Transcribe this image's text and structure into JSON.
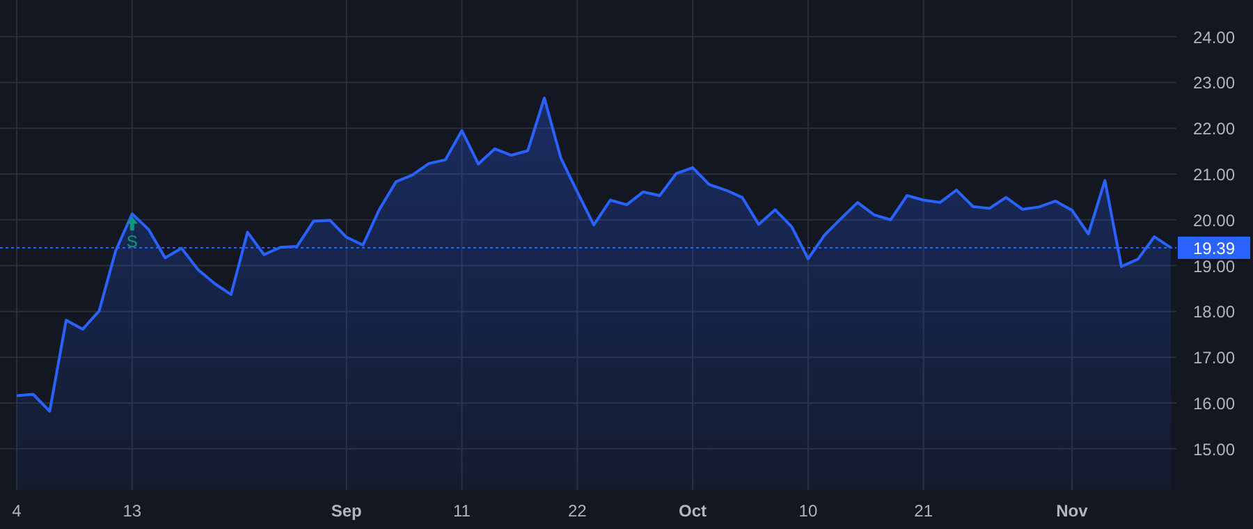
{
  "chart_data": {
    "type": "area",
    "categories": [
      "4",
      null,
      null,
      null,
      null,
      null,
      null,
      "13",
      null,
      null,
      null,
      null,
      null,
      null,
      null,
      null,
      null,
      null,
      null,
      null,
      "Sep",
      null,
      null,
      null,
      null,
      null,
      null,
      "11",
      null,
      null,
      null,
      null,
      null,
      null,
      "22",
      null,
      null,
      null,
      null,
      null,
      null,
      "Oct",
      null,
      null,
      null,
      null,
      null,
      null,
      "10",
      null,
      null,
      null,
      null,
      null,
      null,
      "21",
      null,
      null,
      null,
      null,
      null,
      null,
      null,
      null,
      "Nov",
      null,
      null,
      null,
      null,
      null,
      null
    ],
    "series": [
      {
        "color": "#2962ff",
        "values": [
          16.16,
          16.19,
          15.82,
          17.81,
          17.61,
          18.01,
          19.32,
          20.13,
          19.79,
          19.17,
          19.38,
          18.91,
          18.61,
          18.37,
          19.73,
          19.24,
          19.4,
          19.42,
          19.97,
          19.99,
          19.62,
          19.45,
          20.23,
          20.83,
          20.98,
          21.23,
          21.31,
          21.95,
          21.22,
          21.55,
          21.41,
          21.51,
          22.66,
          21.35,
          20.61,
          19.89,
          20.43,
          20.33,
          20.61,
          20.53,
          21.01,
          21.14,
          20.77,
          20.65,
          20.49,
          19.9,
          20.22,
          19.85,
          19.15,
          19.67,
          20.03,
          20.38,
          20.11,
          20.0,
          20.53,
          20.43,
          20.38,
          20.65,
          20.29,
          20.25,
          20.49,
          20.23,
          20.28,
          20.41,
          20.21,
          19.69,
          20.86,
          18.98,
          19.14,
          19.63,
          19.39
        ]
      }
    ],
    "ylim": [
      14.1,
      24.8
    ],
    "yticks": [
      {
        "value": 15,
        "label": "15.00"
      },
      {
        "value": 16,
        "label": "16.00"
      },
      {
        "value": 17,
        "label": "17.00"
      },
      {
        "value": 18,
        "label": "18.00"
      },
      {
        "value": 19,
        "label": "19.00"
      },
      {
        "value": 20,
        "label": "20.00"
      },
      {
        "value": 21,
        "label": "21.00"
      },
      {
        "value": 22,
        "label": "22.00"
      },
      {
        "value": 23,
        "label": "23.00"
      },
      {
        "value": 24,
        "label": "24.00"
      }
    ],
    "grid": true,
    "ref_lines": [
      {
        "axis": "y",
        "value": 19.39,
        "label": "19.39",
        "color": "#2962ff",
        "line_style": "dotted"
      }
    ],
    "annotations": [
      {
        "text": "S",
        "x": "13",
        "y": 20.13
      }
    ]
  }
}
